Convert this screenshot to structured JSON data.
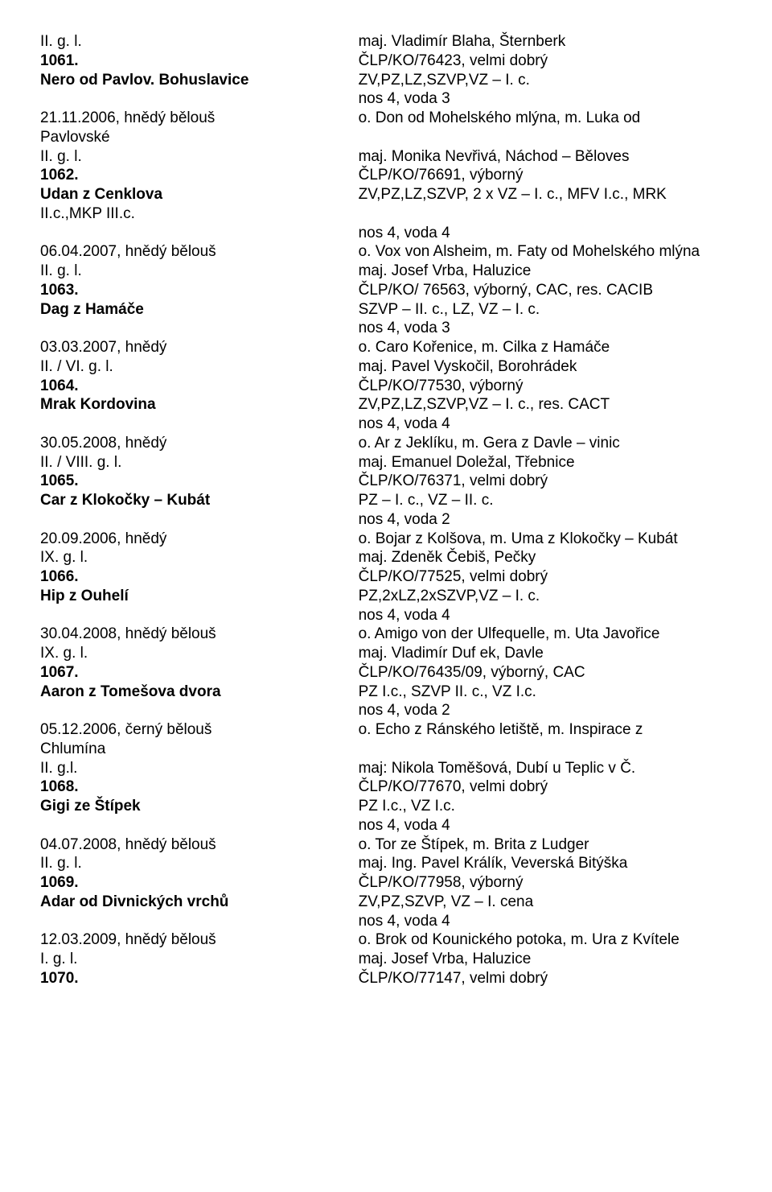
{
  "rows": [
    {
      "left": "II. g. l.",
      "lb": false,
      "right": "maj. Vladimír Blaha, Šternberk",
      "rb": false
    },
    {
      "left": "1061.",
      "lb": true,
      "right": "ČLP/KO/76423, velmi dobrý",
      "rb": false
    },
    {
      "left": "Nero od Pavlov. Bohuslavice",
      "lb": true,
      "right": "ZV,PZ,LZ,SZVP,VZ – I. c.",
      "rb": false
    },
    {
      "left": "",
      "lb": false,
      "right": "nos 4, voda 3",
      "rb": false
    },
    {
      "left": "21.11.2006, hnědý bělouš",
      "lb": false,
      "right": "o. Don od Mohelského mlýna, m. Luka od",
      "rb": false
    },
    {
      "left": "Pavlovské",
      "lb": false,
      "right": "",
      "rb": false
    },
    {
      "left": "II. g. l.",
      "lb": false,
      "right": "maj. Monika Nevřivá, Náchod – Běloves",
      "rb": false
    },
    {
      "left": "1062.",
      "lb": true,
      "right": "ČLP/KO/76691, výborný",
      "rb": false
    },
    {
      "left": "Udan z Cenklova",
      "lb": true,
      "right": "ZV,PZ,LZ,SZVP, 2 x VZ – I. c., MFV I.c., MRK",
      "rb": false
    },
    {
      "left": "II.c.,MKP III.c.",
      "lb": false,
      "right": "",
      "rb": false
    },
    {
      "left": "",
      "lb": false,
      "right": "nos 4, voda 4",
      "rb": false
    },
    {
      "left": "06.04.2007, hnědý bělouš",
      "lb": false,
      "right": "o. Vox von Alsheim, m. Faty od Mohelského mlýna",
      "rb": false
    },
    {
      "left": "II. g. l.",
      "lb": false,
      "right": "maj. Josef Vrba, Haluzice",
      "rb": false
    },
    {
      "left": "1063.",
      "lb": true,
      "right": "ČLP/KO/ 76563, výborný, CAC, res. CACIB",
      "rb": false
    },
    {
      "left": "Dag z Hamáče",
      "lb": true,
      "right": "SZVP – II. c., LZ, VZ – I. c.",
      "rb": false
    },
    {
      "left": "",
      "lb": false,
      "right": "nos 4, voda 3",
      "rb": false
    },
    {
      "left": "03.03.2007, hnědý",
      "lb": false,
      "right": "o. Caro Kořenice, m. Cilka z Hamáče",
      "rb": false
    },
    {
      "left": "II. / VI. g. l.",
      "lb": false,
      "right": "maj. Pavel Vyskočil, Borohrádek",
      "rb": false
    },
    {
      "left": "1064.",
      "lb": true,
      "right": "ČLP/KO/77530, výborný",
      "rb": false
    },
    {
      "left": "Mrak Kordovina",
      "lb": true,
      "right": "ZV,PZ,LZ,SZVP,VZ – I. c., res. CACT",
      "rb": false
    },
    {
      "left": "",
      "lb": false,
      "right": "nos 4, voda 4",
      "rb": false
    },
    {
      "left": "30.05.2008, hnědý",
      "lb": false,
      "right": "o. Ar z Jeklíku, m. Gera z Davle – vinic",
      "rb": false
    },
    {
      "left": "II. / VIII. g. l.",
      "lb": false,
      "right": "maj. Emanuel Doležal, Třebnice",
      "rb": false
    },
    {
      "left": "1065.",
      "lb": true,
      "right": "ČLP/KO/76371, velmi dobrý",
      "rb": false
    },
    {
      "left": "Car z Klokočky – Kubát",
      "lb": true,
      "right": "PZ – I. c., VZ – II. c.",
      "rb": false
    },
    {
      "left": "",
      "lb": false,
      "right": "nos 4, voda 2",
      "rb": false
    },
    {
      "left": "20.09.2006, hnědý",
      "lb": false,
      "right": "o. Bojar z Kolšova, m. Uma z Klokočky – Kubát",
      "rb": false
    },
    {
      "left": "IX. g. l.",
      "lb": false,
      "right": "maj. Zdeněk Čebiš, Pečky",
      "rb": false
    },
    {
      "left": "1066.",
      "lb": true,
      "right": "ČLP/KO/77525, velmi dobrý",
      "rb": false
    },
    {
      "left": "Hip z Ouhelí",
      "lb": true,
      "right": "PZ,2xLZ,2xSZVP,VZ – I. c.",
      "rb": false
    },
    {
      "left": "",
      "lb": false,
      "right": "nos 4, voda 4",
      "rb": false
    },
    {
      "left": "30.04.2008, hnědý bělouš",
      "lb": false,
      "right": "o. Amigo von der Ulfequelle, m. Uta Javořice",
      "rb": false
    },
    {
      "left": "IX. g. l.",
      "lb": false,
      "right": "maj. Vladimír Duf ek, Davle",
      "rb": false
    },
    {
      "left": "1067.",
      "lb": true,
      "right": "ČLP/KO/76435/09, výborný, CAC",
      "rb": false
    },
    {
      "left": "Aaron z Tomešova dvora",
      "lb": true,
      "right": "PZ I.c., SZVP II. c., VZ I.c.",
      "rb": false
    },
    {
      "left": "",
      "lb": false,
      "right": "nos 4, voda 2",
      "rb": false
    },
    {
      "left": "05.12.2006, černý bělouš",
      "lb": false,
      "right": "o. Echo z Ránského letiště, m. Inspirace z",
      "rb": false
    },
    {
      "left": "Chlumína",
      "lb": false,
      "right": "",
      "rb": false
    },
    {
      "left": "II. g.l.",
      "lb": false,
      "right": "maj: Nikola Toměšová, Dubí u Teplic v Č.",
      "rb": false
    },
    {
      "left": "1068.",
      "lb": true,
      "right": "ČLP/KO/77670, velmi dobrý",
      "rb": false
    },
    {
      "left": "Gigi ze Štípek",
      "lb": true,
      "right": "PZ I.c., VZ I.c.",
      "rb": false
    },
    {
      "left": "",
      "lb": false,
      "right": "nos 4, voda 4",
      "rb": false
    },
    {
      "left": "04.07.2008, hnědý bělouš",
      "lb": false,
      "right": "o. Tor ze Štípek, m. Brita z Ludger",
      "rb": false
    },
    {
      "left": "II. g. l.",
      "lb": false,
      "right": "maj. Ing. Pavel Králík, Veverská Bitýška",
      "rb": false
    },
    {
      "left": "1069.",
      "lb": true,
      "right": "ČLP/KO/77958, výborný",
      "rb": false
    },
    {
      "left": "Adar od Divnických vrchů",
      "lb": true,
      "right": "ZV,PZ,SZVP, VZ – I. cena",
      "rb": false
    },
    {
      "left": "",
      "lb": false,
      "right": "nos 4, voda 4",
      "rb": false
    },
    {
      "left": "12.03.2009, hnědý bělouš",
      "lb": false,
      "right": "o. Brok od Kounického potoka, m. Ura z Kvítele",
      "rb": false
    },
    {
      "left": "I. g. l.",
      "lb": false,
      "right": "maj. Josef Vrba, Haluzice",
      "rb": false
    },
    {
      "left": "1070.",
      "lb": true,
      "right": "ČLP/KO/77147, velmi dobrý",
      "rb": false
    }
  ]
}
